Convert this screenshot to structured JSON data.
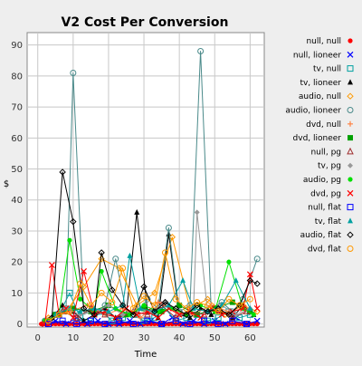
{
  "chart_data": {
    "type": "line",
    "title": "V2 Cost Per Conversion",
    "xlabel": "Time",
    "ylabel": "$",
    "xlim": [
      -3,
      64
    ],
    "ylim": [
      -1,
      94
    ],
    "x_ticks": [
      0,
      10,
      20,
      30,
      40,
      50,
      60
    ],
    "y_ticks": [
      0,
      10,
      20,
      30,
      40,
      50,
      60,
      70,
      80,
      90
    ],
    "grid": true,
    "legend_position": "right",
    "series": [
      {
        "name": "null, null",
        "color": "#ff0000",
        "marker": "dot",
        "x": [
          1,
          2,
          3,
          4,
          5,
          6,
          7,
          8,
          9,
          10,
          11,
          12,
          13,
          14,
          15,
          16,
          17,
          18,
          19,
          20,
          21,
          22,
          23,
          24,
          25,
          26,
          27,
          28,
          29,
          30,
          31,
          32,
          33,
          34,
          35,
          36,
          37,
          38,
          39,
          40,
          41,
          42,
          43,
          44,
          45,
          46,
          47,
          48,
          49,
          50,
          51,
          52,
          53,
          54,
          55,
          56,
          57,
          58,
          59,
          60,
          61,
          62
        ],
        "y": [
          0,
          0,
          0,
          0,
          0,
          0,
          0,
          0,
          0,
          0,
          0,
          0,
          0,
          0,
          0,
          0,
          0,
          0,
          0,
          0,
          0,
          0,
          0,
          0,
          0,
          0,
          0,
          0,
          0,
          0,
          0,
          0,
          0,
          0,
          0,
          0,
          0,
          0,
          0,
          0,
          0,
          0,
          0,
          0,
          0,
          0,
          0,
          0,
          0,
          0,
          0,
          0,
          0,
          0,
          0,
          0,
          0,
          0,
          0,
          0,
          0,
          0
        ]
      },
      {
        "name": "null, lioneer",
        "color": "#0000ff",
        "marker": "x",
        "x": [
          2,
          5,
          8,
          11,
          14,
          17,
          20,
          23,
          26,
          29,
          32,
          35,
          38,
          41,
          44,
          47,
          50,
          53,
          56,
          59,
          62
        ],
        "y": [
          0,
          1,
          0,
          2,
          0,
          1,
          0,
          0,
          1,
          0,
          1,
          0,
          2,
          0,
          1,
          0,
          1,
          0,
          2,
          0,
          1
        ]
      },
      {
        "name": "tv, null",
        "color": "#00a0a0",
        "marker": "square",
        "x": [
          3,
          6,
          9,
          12,
          15,
          18,
          21,
          24,
          27,
          30,
          33,
          36,
          39,
          42,
          45,
          48,
          51,
          54,
          57,
          60
        ],
        "y": [
          1,
          3,
          10,
          2,
          1,
          4,
          1,
          2,
          3,
          1,
          2,
          5,
          1,
          2,
          3,
          1,
          2,
          4,
          2,
          3
        ]
      },
      {
        "name": "tv, lioneer",
        "color": "#000000",
        "marker": "triangle",
        "x": [
          4,
          7,
          10,
          13,
          16,
          19,
          22,
          25,
          28,
          31,
          34,
          37,
          40,
          43,
          46,
          49,
          52,
          55,
          58,
          61
        ],
        "y": [
          2,
          6,
          4,
          1,
          3,
          5,
          2,
          3,
          36,
          4,
          2,
          29,
          3,
          2,
          5,
          3,
          4,
          2,
          6,
          3
        ]
      },
      {
        "name": "audio, null",
        "color": "#ff9900",
        "marker": "diamond-open",
        "x": [
          3,
          8,
          13,
          18,
          23,
          28,
          33,
          38,
          43,
          48,
          53,
          58,
          62
        ],
        "y": [
          2,
          4,
          12,
          21,
          18,
          6,
          10,
          28,
          5,
          8,
          3,
          6,
          4
        ]
      },
      {
        "name": "audio, lioneer",
        "color": "#4a8a8a",
        "marker": "circle-open",
        "x": [
          2,
          5,
          8,
          10,
          13,
          16,
          19,
          22,
          25,
          28,
          31,
          34,
          37,
          40,
          43,
          46,
          49,
          52,
          55,
          58,
          62
        ],
        "y": [
          1,
          3,
          5,
          81,
          4,
          3,
          6,
          21,
          4,
          3,
          8,
          5,
          31,
          4,
          6,
          88,
          5,
          7,
          4,
          8,
          21
        ]
      },
      {
        "name": "dvd, null",
        "color": "#ff8040",
        "marker": "plus",
        "x": [
          4,
          9,
          14,
          19,
          24,
          29,
          34,
          39,
          44,
          49,
          54,
          59
        ],
        "y": [
          2,
          4,
          6,
          3,
          5,
          2,
          7,
          4,
          3,
          6,
          4,
          5
        ]
      },
      {
        "name": "dvd, lioneer",
        "color": "#00a000",
        "marker": "square-filled",
        "x": [
          5,
          10,
          15,
          20,
          25,
          30,
          35,
          40,
          45,
          50,
          55,
          60
        ],
        "y": [
          3,
          5,
          4,
          6,
          3,
          5,
          4,
          6,
          3,
          5,
          7,
          4
        ]
      },
      {
        "name": "null, pg",
        "color": "#a03030",
        "marker": "triangle-open",
        "x": [
          3,
          7,
          11,
          15,
          19,
          23,
          27,
          31,
          35,
          39,
          43,
          47,
          51,
          55,
          59
        ],
        "y": [
          1,
          4,
          2,
          5,
          3,
          2,
          4,
          3,
          6,
          2,
          4,
          3,
          5,
          2,
          4
        ]
      },
      {
        "name": "tv, pg",
        "color": "#999999",
        "marker": "diamond-filled",
        "x": [
          4,
          8,
          12,
          16,
          20,
          24,
          28,
          32,
          36,
          40,
          44,
          45,
          48,
          52,
          56,
          60
        ],
        "y": [
          2,
          5,
          3,
          4,
          6,
          3,
          5,
          4,
          7,
          3,
          5,
          36,
          4,
          6,
          3,
          5
        ]
      },
      {
        "name": "audio, pg",
        "color": "#00e000",
        "marker": "dot",
        "x": [
          2,
          6,
          9,
          12,
          16,
          18,
          22,
          26,
          30,
          34,
          38,
          42,
          46,
          50,
          54,
          58,
          61
        ],
        "y": [
          1,
          3,
          27,
          8,
          4,
          17,
          5,
          3,
          6,
          4,
          5,
          3,
          6,
          4,
          20,
          5,
          3
        ]
      },
      {
        "name": "dvd, pg",
        "color": "#ff0000",
        "marker": "x",
        "x": [
          2,
          4,
          6,
          8,
          10,
          13,
          16,
          19,
          22,
          25,
          28,
          31,
          34,
          37,
          40,
          43,
          46,
          49,
          52,
          55,
          58,
          60,
          62
        ],
        "y": [
          0,
          19,
          3,
          5,
          2,
          17,
          3,
          4,
          2,
          5,
          3,
          4,
          2,
          5,
          3,
          4,
          2,
          5,
          3,
          4,
          5,
          16,
          5
        ]
      },
      {
        "name": "null, flat",
        "color": "#0000ff",
        "marker": "square-open",
        "x": [
          3,
          7,
          11,
          15,
          19,
          23,
          27,
          31,
          35,
          39,
          43,
          47,
          51,
          55,
          59
        ],
        "y": [
          0,
          1,
          0,
          1,
          0,
          1,
          0,
          1,
          0,
          1,
          0,
          1,
          0,
          1,
          0
        ]
      },
      {
        "name": "tv, flat",
        "color": "#00a0a0",
        "marker": "triangle-filled",
        "x": [
          5,
          9,
          12,
          16,
          20,
          24,
          26,
          29,
          33,
          37,
          41,
          44,
          48,
          52,
          56,
          60
        ],
        "y": [
          3,
          5,
          4,
          5,
          4,
          6,
          22,
          5,
          4,
          6,
          14,
          5,
          4,
          6,
          14,
          5
        ]
      },
      {
        "name": "audio, flat",
        "color": "#000000",
        "marker": "diamond-open",
        "x": [
          4,
          7,
          10,
          13,
          16,
          18,
          21,
          24,
          27,
          30,
          33,
          36,
          39,
          42,
          45,
          48,
          51,
          54,
          57,
          60,
          62
        ],
        "y": [
          2,
          49,
          33,
          5,
          3,
          23,
          11,
          6,
          3,
          12,
          4,
          7,
          5,
          3,
          6,
          4,
          5,
          3,
          6,
          14,
          13
        ]
      },
      {
        "name": "dvd, flat",
        "color": "#ff9900",
        "marker": "circle-open",
        "x": [
          3,
          6,
          9,
          12,
          15,
          18,
          21,
          24,
          27,
          30,
          33,
          36,
          39,
          42,
          45,
          48,
          51,
          54,
          57,
          60
        ],
        "y": [
          1,
          3,
          4,
          13,
          6,
          10,
          7,
          18,
          5,
          9,
          6,
          23,
          8,
          5,
          7,
          6,
          4,
          8,
          6,
          8
        ]
      }
    ]
  }
}
